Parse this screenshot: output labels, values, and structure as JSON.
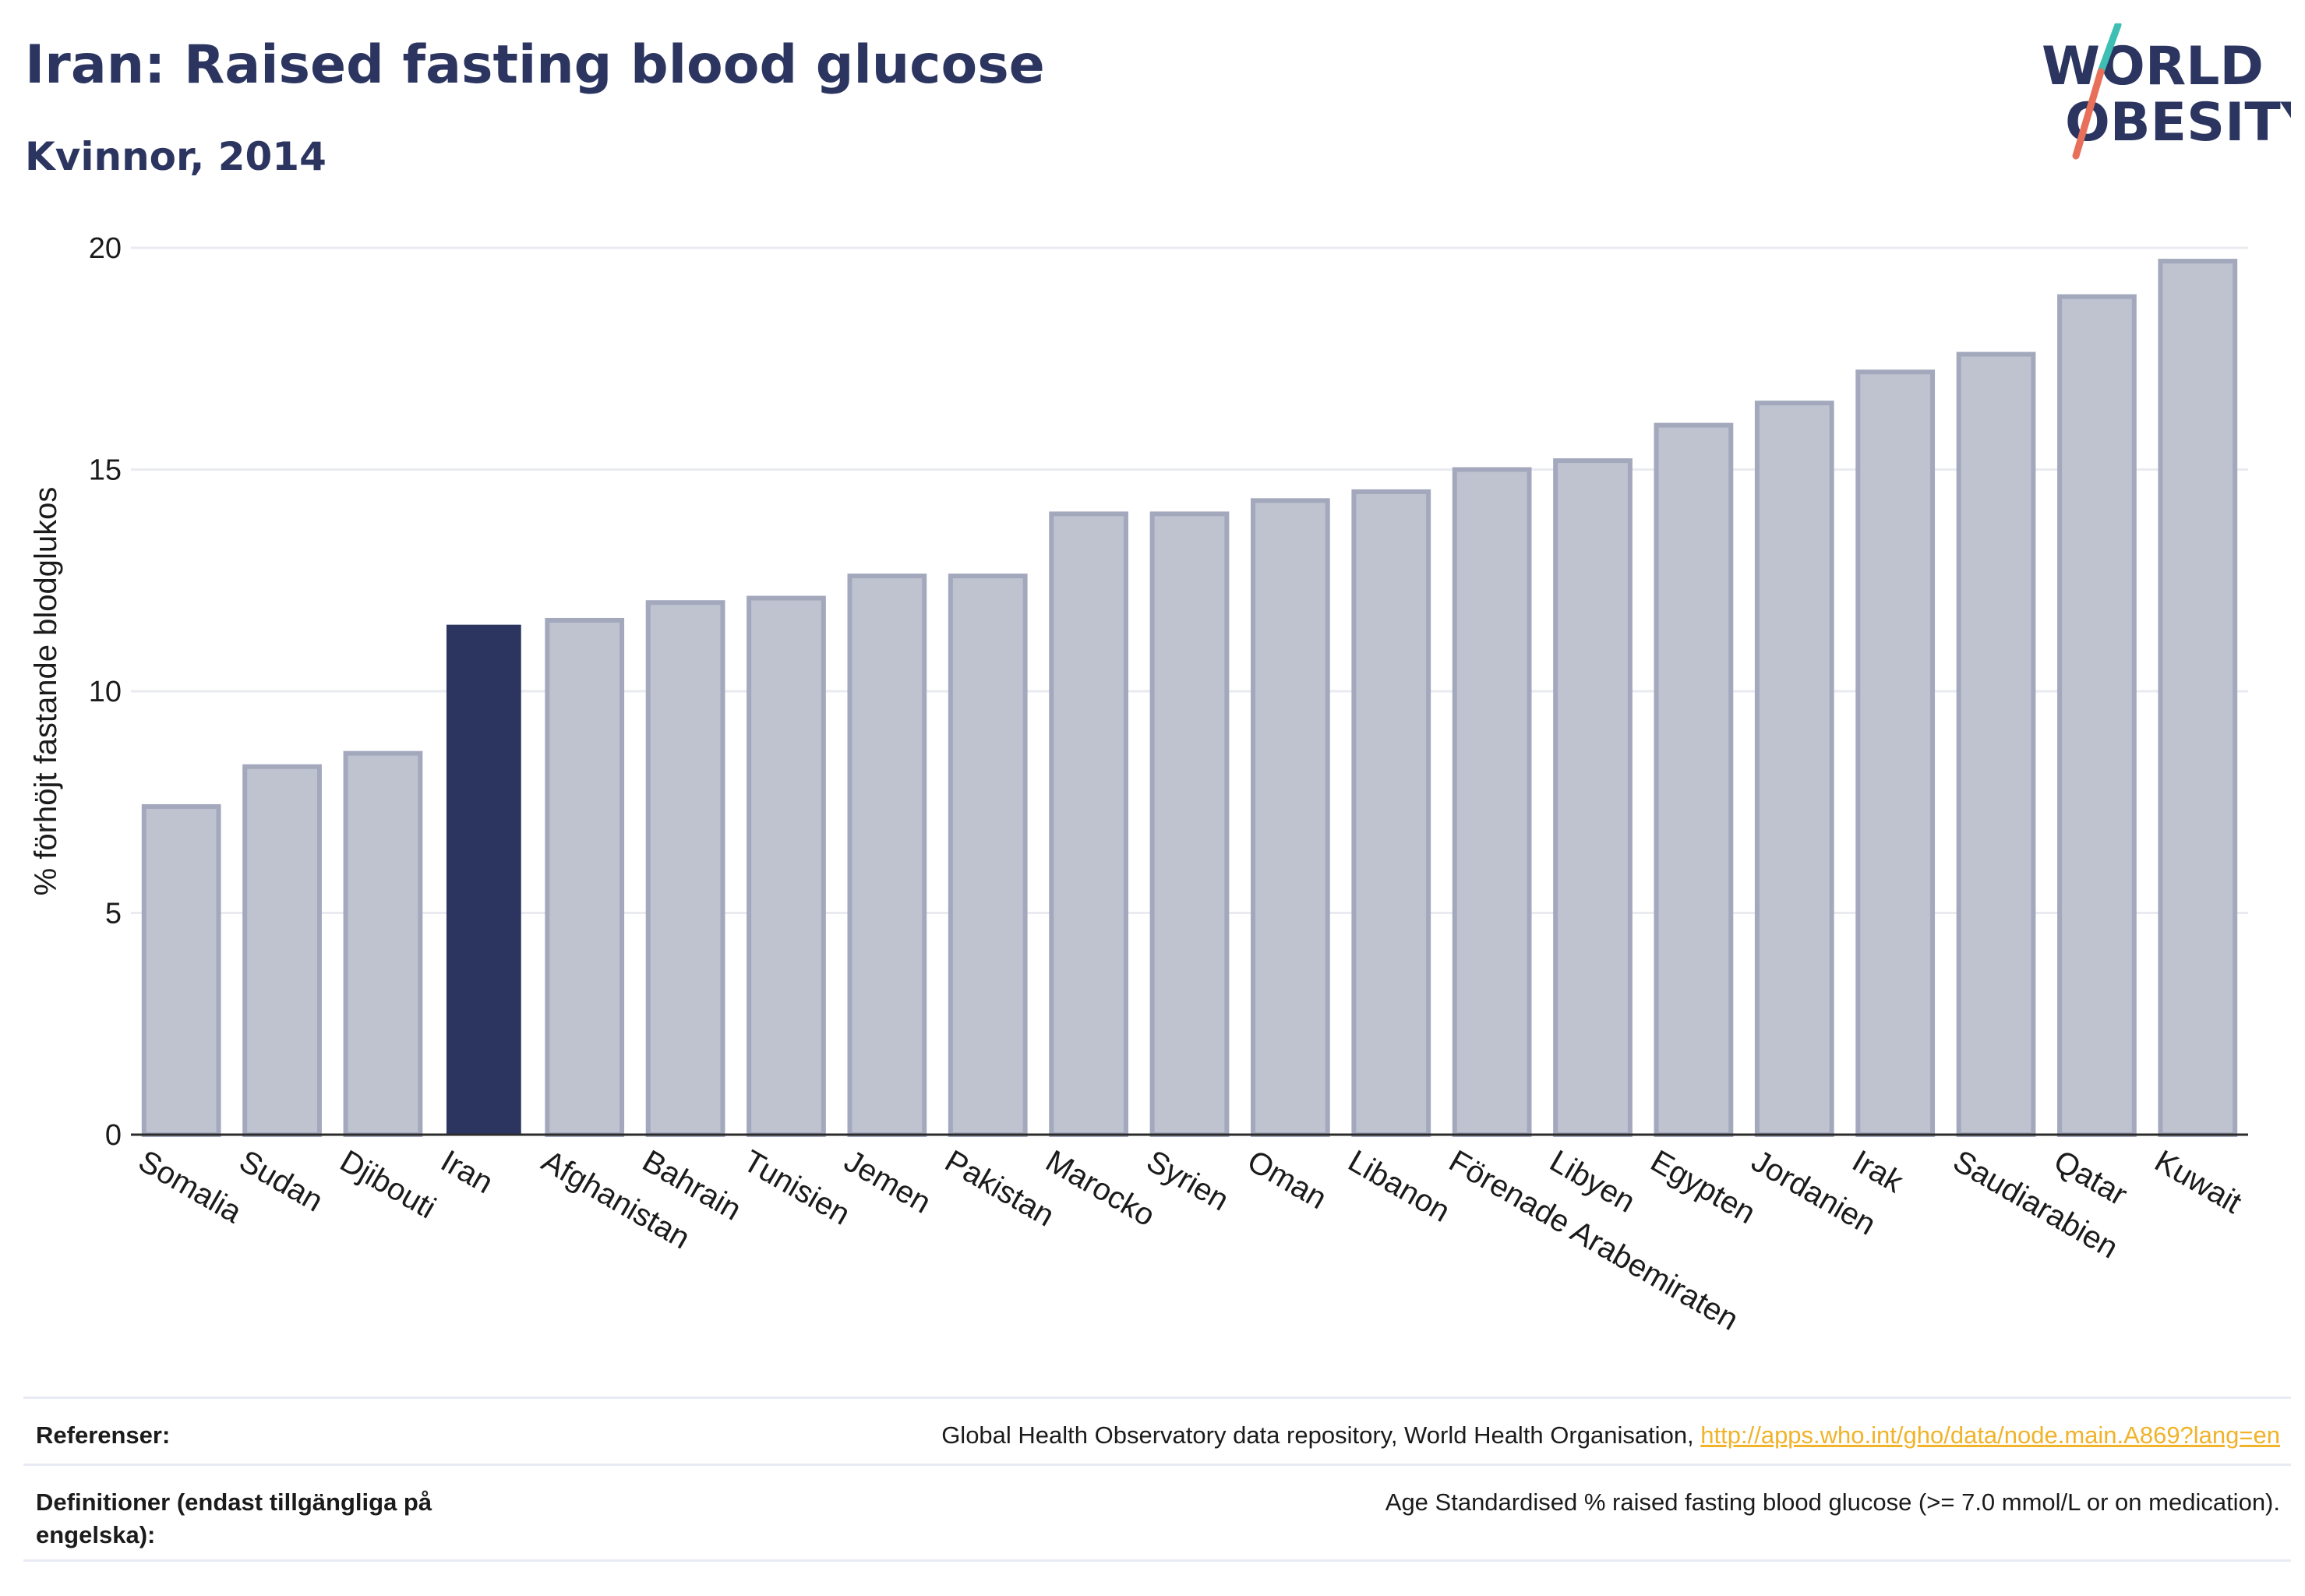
{
  "header": {
    "title": "Iran: Raised fasting blood glucose",
    "subtitle": "Kvinnor, 2014"
  },
  "logo": {
    "line1": "WORLD",
    "line2": "OBESITY",
    "text_color": "#2b3560",
    "slash_color_top": "#3dbfb3",
    "slash_color_bottom": "#e8705a"
  },
  "colors": {
    "highlight_bar": "#2b3560",
    "other_bar_fill": "#bfc3d0",
    "other_bar_stroke": "#a3a8bd",
    "grid": "#e9ebf1",
    "axis": "#2b2b2b",
    "text": "#1b1b1b",
    "link": "#f0b32a"
  },
  "chart_data": {
    "type": "bar",
    "ylabel": "% förhöjt fastande blodglukos",
    "xlabel": "",
    "ylim": [
      0,
      20
    ],
    "yticks": [
      0,
      5,
      10,
      15,
      20
    ],
    "grid": true,
    "highlight": "Iran",
    "categories": [
      "Somalia",
      "Sudan",
      "Djibouti",
      "Iran",
      "Afghanistan",
      "Bahrain",
      "Tunisien",
      "Jemen",
      "Pakistan",
      "Marocko",
      "Syrien",
      "Oman",
      "Libanon",
      "Förenade Arabemiraten",
      "Libyen",
      "Egypten",
      "Jordanien",
      "Irak",
      "Saudiarabien",
      "Qatar",
      "Kuwait"
    ],
    "values": [
      7.4,
      8.3,
      8.6,
      11.5,
      11.6,
      12.0,
      12.1,
      12.6,
      12.6,
      14.0,
      14.0,
      14.3,
      14.5,
      15.0,
      15.2,
      16.0,
      16.5,
      17.2,
      17.6,
      18.9,
      19.7
    ]
  },
  "footer": {
    "references_label": "Referenser:",
    "references_text": "Global Health Observatory data repository, World Health Organisation, ",
    "references_link": "http://apps.who.int/gho/data/node.main.A869?lang=en",
    "definitions_label": "Definitioner (endast tillgängliga på engelska):",
    "definitions_text": "Age Standardised % raised fasting blood glucose (>= 7.0 mmol/L or on medication)."
  }
}
